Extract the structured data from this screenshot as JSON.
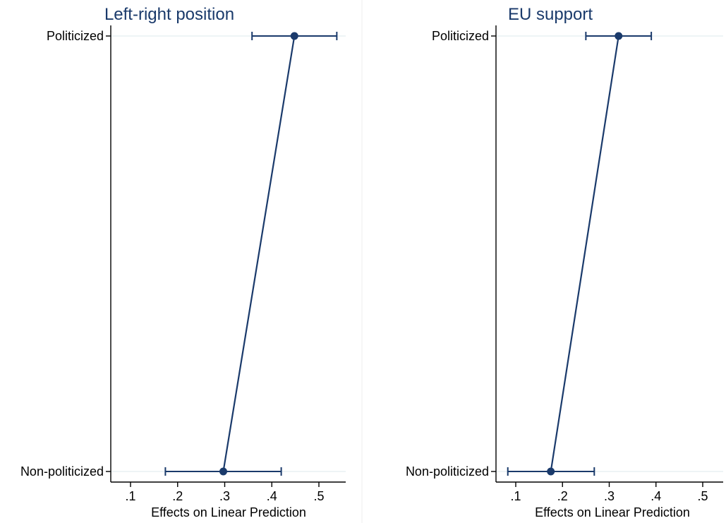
{
  "chart_data": [
    {
      "type": "line",
      "title": "Left-right position",
      "xlabel": "Effects on Linear Prediction",
      "ylabel": "",
      "categories": [
        "Politicized",
        "Non-politicized"
      ],
      "xlim": [
        0.05,
        0.55
      ],
      "xticks": [
        0.1,
        0.2,
        0.3,
        0.4,
        0.5
      ],
      "xtick_labels": [
        ".1",
        ".2",
        ".3",
        ".4",
        ".5"
      ],
      "grid": true,
      "points": [
        {
          "category": "Politicized",
          "estimate": 0.448,
          "ci_low": 0.358,
          "ci_high": 0.538
        },
        {
          "category": "Non-politicized",
          "estimate": 0.297,
          "ci_low": 0.174,
          "ci_high": 0.42
        }
      ],
      "color": "#1a3a6b"
    },
    {
      "type": "line",
      "title": "EU support",
      "xlabel": "Effects on Linear Prediction",
      "ylabel": "",
      "categories": [
        "Politicized",
        "Non-politicized"
      ],
      "xlim": [
        0.07,
        0.55
      ],
      "xticks": [
        0.1,
        0.2,
        0.3,
        0.4,
        0.5
      ],
      "xtick_labels": [
        ".1",
        ".2",
        ".3",
        ".4",
        ".5"
      ],
      "grid": true,
      "points": [
        {
          "category": "Politicized",
          "estimate": 0.32,
          "ci_low": 0.25,
          "ci_high": 0.39
        },
        {
          "category": "Non-politicized",
          "estimate": 0.175,
          "ci_low": 0.083,
          "ci_high": 0.268
        }
      ],
      "color": "#1a3a6b"
    }
  ]
}
